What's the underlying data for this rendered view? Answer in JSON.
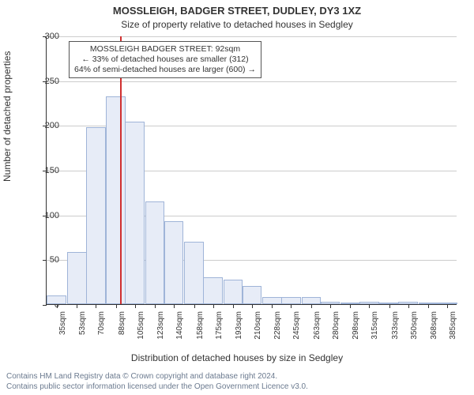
{
  "title": "MOSSLEIGH, BADGER STREET, DUDLEY, DY3 1XZ",
  "subtitle": "Size of property relative to detached houses in Sedgley",
  "ylabel": "Number of detached properties",
  "xlabel": "Distribution of detached houses by size in Sedgley",
  "footer_line1": "Contains HM Land Registry data © Crown copyright and database right 2024.",
  "footer_line2": "Contains public sector information licensed under the Open Government Licence v3.0.",
  "annotation": {
    "line1": "MOSSLEIGH BADGER STREET: 92sqm",
    "line2": "← 33% of detached houses are smaller (312)",
    "line3": "64% of semi-detached houses are larger (600) →"
  },
  "chart": {
    "type": "histogram",
    "background_color": "#ffffff",
    "grid_color": "#cccccc",
    "axis_color": "#333333",
    "bar_fill": "#e7ecf7",
    "bar_stroke": "#9fb4d8",
    "marker_color": "#d03030",
    "marker_x_value": 92,
    "x_min": 26,
    "x_max": 394,
    "ylim": [
      0,
      300
    ],
    "ytick_step": 50,
    "yticks": [
      0,
      50,
      100,
      150,
      200,
      250,
      300
    ],
    "xticks": [
      "35sqm",
      "53sqm",
      "70sqm",
      "88sqm",
      "105sqm",
      "123sqm",
      "140sqm",
      "158sqm",
      "175sqm",
      "193sqm",
      "210sqm",
      "228sqm",
      "245sqm",
      "263sqm",
      "280sqm",
      "298sqm",
      "315sqm",
      "333sqm",
      "350sqm",
      "368sqm",
      "385sqm"
    ],
    "xtick_values": [
      35,
      53,
      70,
      88,
      105,
      123,
      140,
      158,
      175,
      193,
      210,
      228,
      245,
      263,
      280,
      298,
      315,
      333,
      350,
      368,
      385
    ],
    "bar_halfwidth": 8.75,
    "tick_fontsize": 11,
    "label_fontsize": 12,
    "title_fontsize": 13,
    "bars": [
      {
        "x": 35,
        "y": 10
      },
      {
        "x": 53,
        "y": 58
      },
      {
        "x": 70,
        "y": 198
      },
      {
        "x": 88,
        "y": 232
      },
      {
        "x": 105,
        "y": 204
      },
      {
        "x": 123,
        "y": 115
      },
      {
        "x": 140,
        "y": 93
      },
      {
        "x": 158,
        "y": 70
      },
      {
        "x": 175,
        "y": 30
      },
      {
        "x": 193,
        "y": 27
      },
      {
        "x": 210,
        "y": 20
      },
      {
        "x": 228,
        "y": 8
      },
      {
        "x": 245,
        "y": 8
      },
      {
        "x": 263,
        "y": 8
      },
      {
        "x": 280,
        "y": 3
      },
      {
        "x": 298,
        "y": 2
      },
      {
        "x": 315,
        "y": 3
      },
      {
        "x": 333,
        "y": 1
      },
      {
        "x": 350,
        "y": 3
      },
      {
        "x": 368,
        "y": 2
      },
      {
        "x": 385,
        "y": 2
      }
    ]
  }
}
